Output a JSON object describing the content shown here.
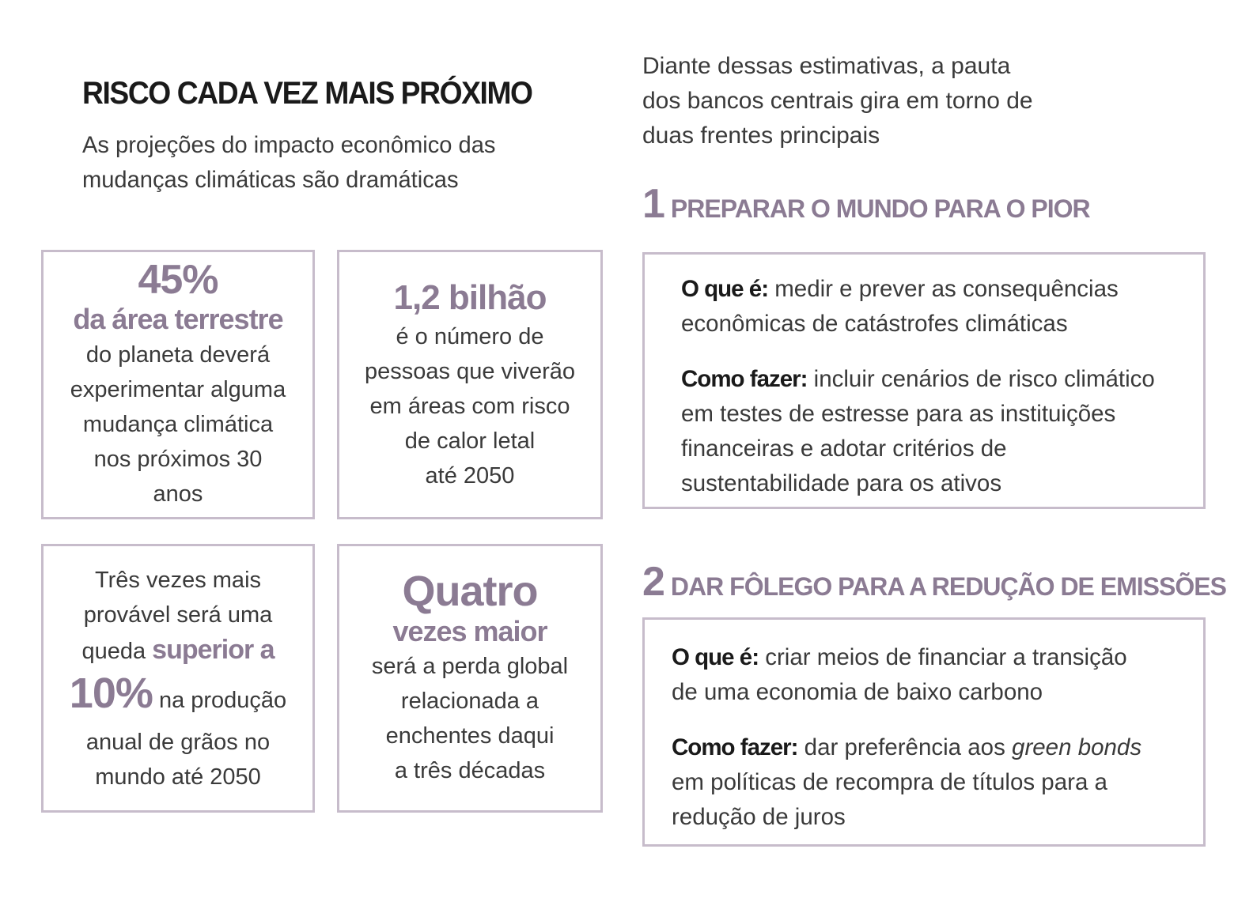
{
  "header": {
    "title": "RISCO CADA VEZ MAIS PRÓXIMO",
    "subtitle_line1": "As projeções do impacto econômico das",
    "subtitle_line2": "mudanças climáticas são dramáticas"
  },
  "stats": {
    "box1": {
      "big": "45%",
      "highlight": "da área terrestre",
      "lines": [
        "do planeta deverá",
        "experimentar alguma",
        "mudança climática",
        "nos próximos 30",
        "anos"
      ]
    },
    "box2": {
      "big": "1,2 bilhão",
      "lines": [
        "é o número de",
        "pessoas que viverão",
        "em áreas com risco",
        "de calor letal",
        "até 2050"
      ]
    },
    "box3": {
      "line1": "Três vezes mais",
      "line2": "provável será uma",
      "line3_pre": "queda ",
      "line3_hl": "superior a",
      "line4_hl": "10%",
      "line4_post": " na produção",
      "line5": "anual de grãos no",
      "line6": "mundo até 2050"
    },
    "box4": {
      "big": "Quatro",
      "highlight": "vezes maior",
      "lines": [
        "será a perda global",
        "relacionada a",
        "enchentes daqui",
        "a três décadas"
      ]
    }
  },
  "intro": {
    "line1": "Diante dessas estimativas, a pauta",
    "line2": "dos bancos centrais gira em torno de",
    "line3": "duas frentes principais"
  },
  "section1": {
    "number": "1",
    "title": "PREPARAR O MUNDO PARA O PIOR",
    "what_label": "O que é:",
    "what_l1": " medir e prever as consequências",
    "what_l2": "econômicas de catástrofes climáticas",
    "how_label": "Como fazer:",
    "how_l1": " incluir cenários de risco climático",
    "how_l2": "em testes de estresse para as instituições",
    "how_l3": "financeiras e adotar critérios de",
    "how_l4": "sustentabilidade para os ativos"
  },
  "section2": {
    "number": "2",
    "title": "DAR FÔLEGO PARA A REDUÇÃO DE EMISSÕES",
    "what_label": "O que é:",
    "what_l1": " criar meios de financiar a transição",
    "what_l2": "de uma economia de baixo carbono",
    "how_label": "Como fazer:",
    "how_l1_pre": " dar preferência aos ",
    "how_l1_it": "green bonds",
    "how_l2": "em políticas de recompra de títulos para a",
    "how_l3": "redução de juros"
  },
  "colors": {
    "accent": "#8b7b93",
    "border": "#c7bccb",
    "text": "#3a3a3a",
    "heading": "#1a1a1a"
  }
}
